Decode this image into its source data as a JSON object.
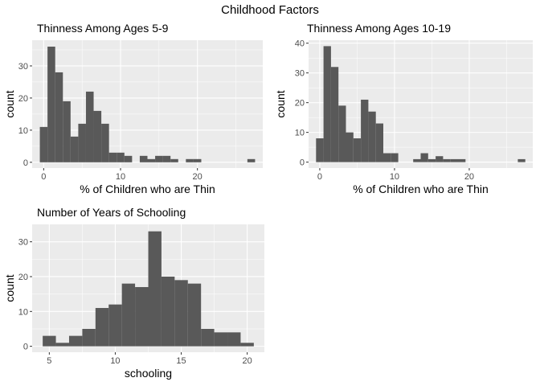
{
  "figure": {
    "title": "Childhood Factors",
    "background": "#ffffff",
    "panel_background": "#ebebeb",
    "bar_color": "#595959"
  },
  "chart_data": [
    {
      "type": "bar",
      "title": "Thinness Among Ages 5-9",
      "xlabel": "% of Children who are Thin",
      "ylabel": "count",
      "bin_width": 1,
      "bins": [
        {
          "x": 0,
          "count": 11
        },
        {
          "x": 1,
          "count": 36
        },
        {
          "x": 2,
          "count": 28
        },
        {
          "x": 3,
          "count": 19
        },
        {
          "x": 4,
          "count": 8
        },
        {
          "x": 5,
          "count": 12
        },
        {
          "x": 6,
          "count": 22
        },
        {
          "x": 7,
          "count": 16
        },
        {
          "x": 8,
          "count": 12
        },
        {
          "x": 9,
          "count": 3
        },
        {
          "x": 10,
          "count": 3
        },
        {
          "x": 11,
          "count": 2
        },
        {
          "x": 12,
          "count": 0
        },
        {
          "x": 13,
          "count": 2
        },
        {
          "x": 14,
          "count": 1
        },
        {
          "x": 15,
          "count": 2
        },
        {
          "x": 16,
          "count": 2
        },
        {
          "x": 17,
          "count": 1
        },
        {
          "x": 18,
          "count": 0
        },
        {
          "x": 19,
          "count": 1
        },
        {
          "x": 20,
          "count": 1
        },
        {
          "x": 27,
          "count": 1
        }
      ],
      "xlim": [
        -1.5,
        28.5
      ],
      "ylim": [
        -1.8,
        38
      ],
      "xticks": [
        0,
        10,
        20
      ],
      "yticks": [
        0,
        10,
        20,
        30
      ],
      "grid": true
    },
    {
      "type": "bar",
      "title": "Thinness Among Ages 10-19",
      "xlabel": "% of Children who are Thin",
      "ylabel": "count",
      "bin_width": 1,
      "bins": [
        {
          "x": 0,
          "count": 8
        },
        {
          "x": 1,
          "count": 39
        },
        {
          "x": 2,
          "count": 32
        },
        {
          "x": 3,
          "count": 19
        },
        {
          "x": 4,
          "count": 10
        },
        {
          "x": 5,
          "count": 8
        },
        {
          "x": 6,
          "count": 21
        },
        {
          "x": 7,
          "count": 17
        },
        {
          "x": 8,
          "count": 13
        },
        {
          "x": 9,
          "count": 3
        },
        {
          "x": 10,
          "count": 3
        },
        {
          "x": 13,
          "count": 1
        },
        {
          "x": 14,
          "count": 3
        },
        {
          "x": 15,
          "count": 1
        },
        {
          "x": 16,
          "count": 2
        },
        {
          "x": 17,
          "count": 1
        },
        {
          "x": 18,
          "count": 1
        },
        {
          "x": 19,
          "count": 1
        },
        {
          "x": 27,
          "count": 1
        }
      ],
      "xlim": [
        -1.5,
        28.5
      ],
      "ylim": [
        -2,
        41
      ],
      "xticks": [
        0,
        10,
        20
      ],
      "yticks": [
        0,
        10,
        20,
        30,
        40
      ],
      "grid": true
    },
    {
      "type": "bar",
      "title": "Number of Years of Schooling",
      "xlabel": "schooling",
      "ylabel": "count",
      "bin_width": 1,
      "bins": [
        {
          "x": 5,
          "count": 3
        },
        {
          "x": 6,
          "count": 1
        },
        {
          "x": 7,
          "count": 3
        },
        {
          "x": 8,
          "count": 5
        },
        {
          "x": 9,
          "count": 11
        },
        {
          "x": 10,
          "count": 12
        },
        {
          "x": 11,
          "count": 18
        },
        {
          "x": 12,
          "count": 17
        },
        {
          "x": 13,
          "count": 33
        },
        {
          "x": 14,
          "count": 20
        },
        {
          "x": 15,
          "count": 19
        },
        {
          "x": 16,
          "count": 18
        },
        {
          "x": 17,
          "count": 5
        },
        {
          "x": 18,
          "count": 4
        },
        {
          "x": 19,
          "count": 4
        },
        {
          "x": 20,
          "count": 1
        }
      ],
      "xlim": [
        3.7,
        21.3
      ],
      "ylim": [
        -1.7,
        35
      ],
      "xticks": [
        5,
        10,
        15,
        20
      ],
      "yticks": [
        0,
        10,
        20,
        30
      ],
      "grid": true
    }
  ]
}
